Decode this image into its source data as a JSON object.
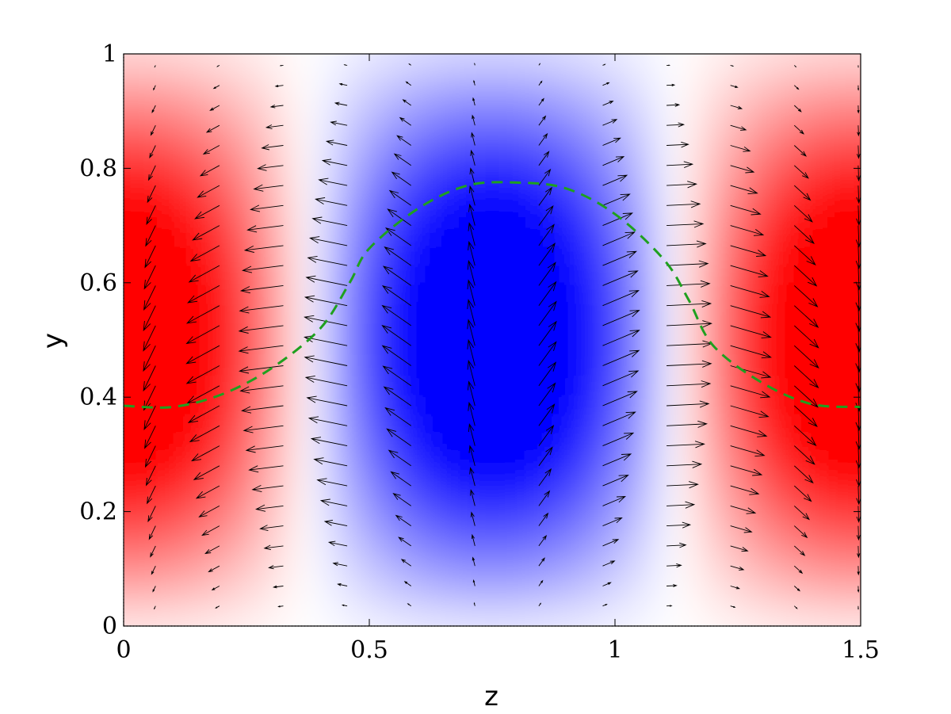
{
  "chart_data": {
    "type": "heatmap",
    "title": "",
    "xlabel": "z",
    "ylabel": "y",
    "xlim": [
      0,
      1.5
    ],
    "ylim": [
      0,
      1
    ],
    "xticks": [
      {
        "value": 0,
        "label": "0"
      },
      {
        "value": 0.5,
        "label": "0.5"
      },
      {
        "value": 1,
        "label": "1"
      },
      {
        "value": 1.5,
        "label": "1.5"
      }
    ],
    "yticks": [
      {
        "value": 0,
        "label": "0"
      },
      {
        "value": 0.2,
        "label": "0.2"
      },
      {
        "value": 0.4,
        "label": "0.4"
      },
      {
        "value": 0.6,
        "label": "0.6"
      },
      {
        "value": 0.8,
        "label": "0.8"
      },
      {
        "value": 1,
        "label": "1"
      }
    ],
    "colormap": {
      "negative": "#ff0000",
      "zero": "#ffffff",
      "positive": "#0000ff"
    },
    "field_period_z": 1.5,
    "quiver_grid": {
      "z_count": 12,
      "z_start": 0.065,
      "z_step": 0.13,
      "y_count": 29,
      "y_start": 0.0,
      "y_step": 0.035
    },
    "curve": {
      "color": "#1fa01f",
      "style": "dashed",
      "points": [
        [
          0,
          0.385
        ],
        [
          0.1,
          0.383
        ],
        [
          0.2,
          0.405
        ],
        [
          0.3,
          0.45
        ],
        [
          0.4,
          0.52
        ],
        [
          0.46,
          0.6
        ],
        [
          0.5,
          0.66
        ],
        [
          0.6,
          0.73
        ],
        [
          0.7,
          0.77
        ],
        [
          0.8,
          0.775
        ],
        [
          0.9,
          0.765
        ],
        [
          1.0,
          0.72
        ],
        [
          1.1,
          0.64
        ],
        [
          1.15,
          0.57
        ],
        [
          1.2,
          0.49
        ],
        [
          1.3,
          0.425
        ],
        [
          1.4,
          0.388
        ],
        [
          1.5,
          0.383
        ]
      ]
    }
  }
}
